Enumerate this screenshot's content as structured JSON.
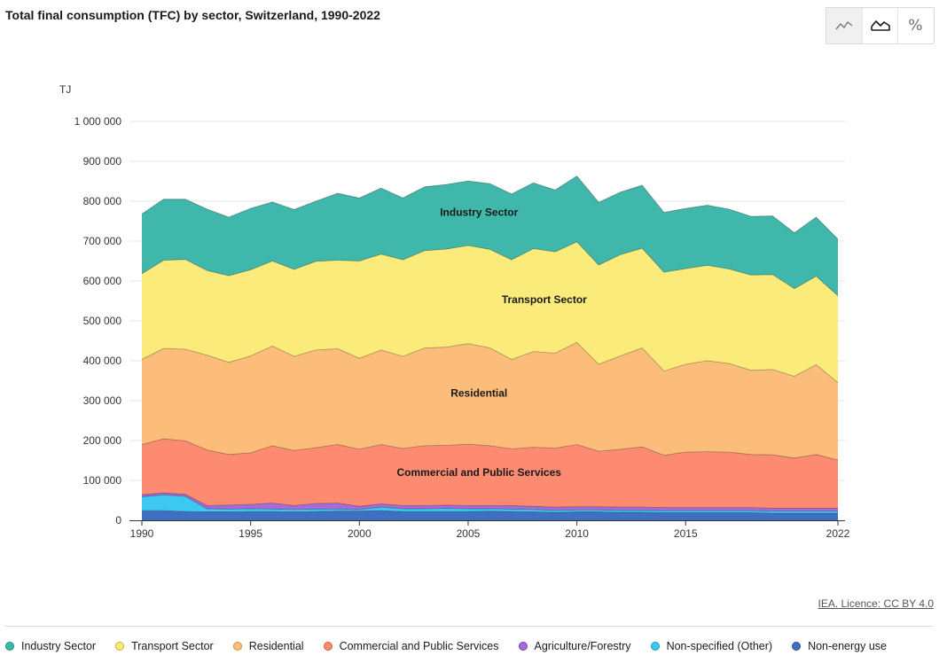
{
  "header": {
    "title": "Total final consumption (TFC) by sector, Switzerland, 1990-2022"
  },
  "toolbar": {
    "percent_label": "%"
  },
  "footer": {
    "source": "IEA. Licence: CC BY 4.0"
  },
  "chart_data": {
    "type": "area",
    "stacked": true,
    "unit": "TJ",
    "x": [
      1990,
      1991,
      1992,
      1993,
      1994,
      1995,
      1996,
      1997,
      1998,
      1999,
      2000,
      2001,
      2002,
      2003,
      2004,
      2005,
      2006,
      2007,
      2008,
      2009,
      2010,
      2011,
      2012,
      2013,
      2014,
      2015,
      2016,
      2017,
      2018,
      2019,
      2020,
      2021,
      2022
    ],
    "x_ticks": [
      "1990",
      "1995",
      "2000",
      "2005",
      "2010",
      "2015",
      "2022"
    ],
    "y_ticks": [
      "0",
      "100 000",
      "200 000",
      "300 000",
      "400 000",
      "500 000",
      "600 000",
      "700 000",
      "800 000",
      "900 000",
      "1 000 000"
    ],
    "ylim": [
      0,
      1000000
    ],
    "grid": true,
    "series": [
      {
        "name": "Non-energy use",
        "color": "#3e6fc0",
        "values": [
          24000,
          24000,
          22000,
          21000,
          21000,
          22000,
          22000,
          21000,
          22000,
          23000,
          23000,
          24000,
          22000,
          22000,
          22000,
          22000,
          23000,
          22000,
          21000,
          20000,
          21000,
          21000,
          20000,
          20000,
          19000,
          19000,
          19000,
          19000,
          19000,
          18000,
          18000,
          18000,
          18000
        ]
      },
      {
        "name": "Non-specified (Other)",
        "color": "#3cc8f0",
        "values": [
          35000,
          40000,
          38000,
          8000,
          7000,
          7000,
          6000,
          6000,
          6000,
          5000,
          4000,
          9000,
          7000,
          7000,
          8000,
          7000,
          6000,
          6000,
          6000,
          5000,
          5000,
          5000,
          5000,
          5000,
          5000,
          5000,
          5000,
          5000,
          5000,
          5000,
          5000,
          5000,
          5000
        ]
      },
      {
        "name": "Agriculture/Forestry",
        "color": "#a56bd8",
        "values": [
          5000,
          5000,
          5000,
          8000,
          10000,
          11000,
          15000,
          10000,
          14000,
          15000,
          8000,
          8000,
          8000,
          8000,
          8000,
          8000,
          8000,
          9000,
          8000,
          8000,
          8000,
          8000,
          8000,
          8000,
          8000,
          8000,
          8000,
          8000,
          8000,
          7000,
          7000,
          7000,
          7000
        ]
      },
      {
        "name": "Commercial and Public Services",
        "color": "#fc8b72",
        "values": [
          126000,
          135000,
          134000,
          139000,
          127000,
          129000,
          144000,
          138000,
          140000,
          147000,
          143000,
          149000,
          143000,
          150000,
          150000,
          154000,
          150000,
          142000,
          148000,
          148000,
          156000,
          139000,
          145000,
          151000,
          131000,
          139000,
          140000,
          139000,
          133000,
          134000,
          126000,
          135000,
          121000
        ]
      },
      {
        "name": "Residential",
        "color": "#fdbd7a",
        "values": [
          213000,
          227000,
          230000,
          238000,
          231000,
          243000,
          250000,
          236000,
          245000,
          240000,
          228000,
          237000,
          231000,
          245000,
          246000,
          252000,
          245000,
          224000,
          240000,
          238000,
          256000,
          218000,
          234000,
          248000,
          211000,
          220000,
          228000,
          222000,
          211000,
          214000,
          205000,
          225000,
          194000
        ]
      },
      {
        "name": "Transport Sector",
        "color": "#fbeb7a",
        "values": [
          215000,
          221000,
          225000,
          212000,
          217000,
          216000,
          213000,
          218000,
          222000,
          222000,
          244000,
          240000,
          242000,
          244000,
          246000,
          246000,
          247000,
          250000,
          258000,
          254000,
          252000,
          249000,
          254000,
          250000,
          248000,
          240000,
          239000,
          237000,
          239000,
          238000,
          220000,
          222000,
          218000
        ]
      },
      {
        "name": "Industry Sector",
        "color": "#3fb8ab",
        "values": [
          150000,
          153000,
          151000,
          154000,
          147000,
          154000,
          148000,
          150000,
          151000,
          168000,
          158000,
          166000,
          155000,
          160000,
          162000,
          162000,
          165000,
          165000,
          165000,
          155000,
          165000,
          157000,
          157000,
          158000,
          150000,
          151000,
          151000,
          150000,
          147000,
          147000,
          140000,
          148000,
          142000
        ]
      }
    ],
    "area_labels": [
      {
        "series": "Industry Sector",
        "text": "Industry Sector",
        "x": 2005.5,
        "y": 763000
      },
      {
        "series": "Transport Sector",
        "text": "Transport Sector",
        "x": 2008.5,
        "y": 545000
      },
      {
        "series": "Residential",
        "text": "Residential",
        "x": 2005.5,
        "y": 310000
      },
      {
        "series": "Commercial and Public Services",
        "text": "Commercial and Public Services",
        "x": 2005.5,
        "y": 111000
      }
    ]
  },
  "legend": {
    "items": [
      {
        "label": "Industry Sector",
        "color": "#3fb8ab",
        "border": "#1f8a7e"
      },
      {
        "label": "Transport Sector",
        "color": "#fbeb7a",
        "border": "#c9b320"
      },
      {
        "label": "Residential",
        "color": "#fdbd7a",
        "border": "#d98a2a"
      },
      {
        "label": "Commercial and Public Services",
        "color": "#fc8b72",
        "border": "#d85a3c"
      },
      {
        "label": "Agriculture/Forestry",
        "color": "#a56bd8",
        "border": "#7a3cb5"
      },
      {
        "label": "Non-specified (Other)",
        "color": "#3cc8f0",
        "border": "#1b97c0"
      },
      {
        "label": "Non-energy use",
        "color": "#3e6fc0",
        "border": "#274e96"
      }
    ]
  }
}
